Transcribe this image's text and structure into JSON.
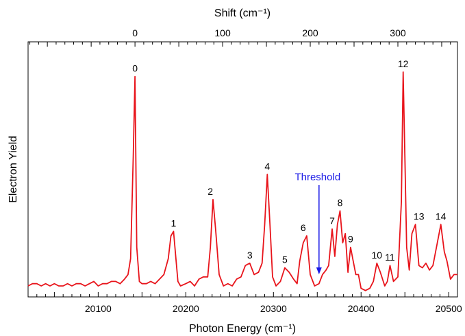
{
  "chart_data": {
    "type": "line",
    "title": "",
    "xlabel": "Photon Energy (cm⁻¹)",
    "x2label": "Shift (cm⁻¹)",
    "ylabel": "Electron Yield",
    "xlim": [
      20020,
      20510
    ],
    "ylim": [
      0,
      100
    ],
    "x_ticks": [
      20100,
      20200,
      20300,
      20400,
      20500
    ],
    "x_tick_labels": [
      "20100",
      "20200",
      "20300",
      "20400",
      "20500"
    ],
    "x2_origin": 20142,
    "x2_ticks": [
      0,
      100,
      200,
      300
    ],
    "x2_tick_labels": [
      "0",
      "100",
      "200",
      "300"
    ],
    "line_color": "#e8141b",
    "series": [
      {
        "x": [
          20020,
          20025,
          20030,
          20035,
          20040,
          20045,
          20050,
          20055,
          20060,
          20065,
          20070,
          20075,
          20080,
          20085,
          20090,
          20095,
          20100,
          20105,
          20110,
          20115,
          20120,
          20125,
          20130,
          20134,
          20137,
          20140,
          20142,
          20144,
          20147,
          20150,
          20155,
          20160,
          20165,
          20170,
          20175,
          20180,
          20183,
          20186,
          20188,
          20191,
          20194,
          20200,
          20205,
          20210,
          20215,
          20220,
          20225,
          20228,
          20231,
          20234,
          20238,
          20243,
          20248,
          20253,
          20258,
          20263,
          20268,
          20273,
          20278,
          20283,
          20287,
          20290,
          20293,
          20296,
          20299,
          20303,
          20308,
          20313,
          20318,
          20323,
          20327,
          20330,
          20334,
          20338,
          20342,
          20347,
          20352,
          20356,
          20360,
          20363,
          20367,
          20370,
          20373,
          20376,
          20379,
          20382,
          20385,
          20388,
          20391,
          20394,
          20397,
          20400,
          20405,
          20410,
          20414,
          20418,
          20422,
          20427,
          20430,
          20433,
          20437,
          20442,
          20446,
          20448,
          20450,
          20452,
          20455,
          20458,
          20462,
          20466,
          20470,
          20474,
          20478,
          20482,
          20487,
          20491,
          20495,
          20498,
          20502,
          20506,
          20510
        ],
        "values": [
          3,
          4,
          4,
          3,
          4,
          3,
          4,
          3,
          3,
          4,
          3,
          4,
          4,
          3,
          4,
          5,
          3,
          4,
          4,
          5,
          5,
          4,
          6,
          8,
          15,
          60,
          95,
          20,
          5,
          4,
          4,
          5,
          4,
          6,
          8,
          15,
          25,
          27,
          18,
          5,
          3,
          4,
          5,
          3,
          6,
          7,
          7,
          20,
          41,
          28,
          8,
          3,
          4,
          3,
          6,
          7,
          12,
          13,
          8,
          9,
          13,
          30,
          52,
          30,
          7,
          3,
          5,
          11,
          9,
          6,
          4,
          14,
          22,
          25,
          8,
          3,
          4,
          8,
          10,
          12,
          28,
          16,
          30,
          36,
          22,
          26,
          9,
          20,
          14,
          8,
          8,
          2,
          1,
          2,
          5,
          13,
          9,
          3,
          5,
          12,
          5,
          7,
          40,
          97,
          60,
          20,
          10,
          26,
          30,
          12,
          11,
          13,
          10,
          12,
          22,
          30,
          18,
          14,
          6,
          8,
          8
        ]
      }
    ],
    "peak_labels": [
      {
        "text": "0",
        "x": 20142,
        "y": 95
      },
      {
        "text": "1",
        "x": 20186,
        "y": 27
      },
      {
        "text": "2",
        "x": 20228,
        "y": 41
      },
      {
        "text": "3",
        "x": 20273,
        "y": 13
      },
      {
        "text": "4",
        "x": 20293,
        "y": 52
      },
      {
        "text": "5",
        "x": 20313,
        "y": 11
      },
      {
        "text": "6",
        "x": 20334,
        "y": 25
      },
      {
        "text": "7",
        "x": 20367,
        "y": 28
      },
      {
        "text": "8",
        "x": 20376,
        "y": 36
      },
      {
        "text": "9",
        "x": 20388,
        "y": 20
      },
      {
        "text": "10",
        "x": 20418,
        "y": 13
      },
      {
        "text": "11",
        "x": 20433,
        "y": 12
      },
      {
        "text": "12",
        "x": 20448,
        "y": 97
      },
      {
        "text": "13",
        "x": 20466,
        "y": 30
      },
      {
        "text": "14",
        "x": 20491,
        "y": 30
      }
    ],
    "annotation": {
      "text": "Threshold",
      "x": 20352,
      "color": "#1919e6"
    }
  }
}
